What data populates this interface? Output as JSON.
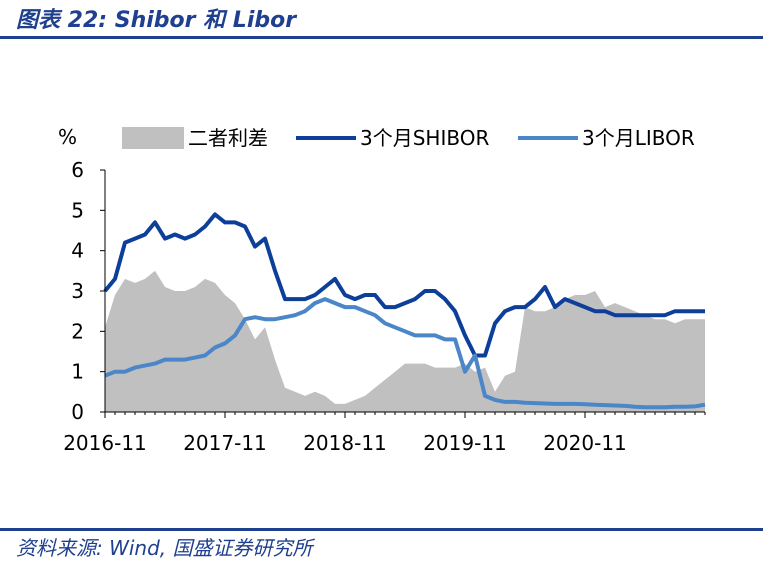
{
  "title": "图表 22:  Shibor 和 Libor",
  "source": "资料来源: Wind, 国盛证券研究所",
  "colors": {
    "brand": "#1f3f8f",
    "spread": "#c0c0c0",
    "shibor": "#0d3f9a",
    "libor": "#4a86c8"
  },
  "chart_data": {
    "type": "line",
    "ylabel": "%",
    "ylim": [
      0,
      6
    ],
    "yticks": [
      "0",
      "1",
      "2",
      "3",
      "4",
      "5",
      "6"
    ],
    "xlabels": [
      "2016-11",
      "2017-11",
      "2018-11",
      "2019-11",
      "2020-11"
    ],
    "legend_position": "top",
    "grid": false,
    "x": [
      "2016-11",
      "2016-12",
      "2017-01",
      "2017-02",
      "2017-03",
      "2017-04",
      "2017-05",
      "2017-06",
      "2017-07",
      "2017-08",
      "2017-09",
      "2017-10",
      "2017-11",
      "2017-12",
      "2018-01",
      "2018-02",
      "2018-03",
      "2018-04",
      "2018-05",
      "2018-06",
      "2018-07",
      "2018-08",
      "2018-09",
      "2018-10",
      "2018-11",
      "2018-12",
      "2019-01",
      "2019-02",
      "2019-03",
      "2019-04",
      "2019-05",
      "2019-06",
      "2019-07",
      "2019-08",
      "2019-09",
      "2019-10",
      "2019-11",
      "2019-12",
      "2020-01",
      "2020-02",
      "2020-03",
      "2020-04",
      "2020-05",
      "2020-06",
      "2020-07",
      "2020-08",
      "2020-09",
      "2020-10",
      "2020-11",
      "2020-12",
      "2021-01",
      "2021-02",
      "2021-03",
      "2021-04",
      "2021-05",
      "2021-06",
      "2021-07",
      "2021-08",
      "2021-09",
      "2021-10",
      "2021-11"
    ],
    "series": [
      {
        "name": "二者利差",
        "kind": "area",
        "values": [
          2.1,
          2.9,
          3.3,
          3.2,
          3.3,
          3.5,
          3.1,
          3.0,
          3.0,
          3.1,
          3.3,
          3.2,
          2.9,
          2.7,
          2.3,
          1.8,
          2.1,
          1.3,
          0.6,
          0.5,
          0.4,
          0.5,
          0.4,
          0.2,
          0.2,
          0.3,
          0.4,
          0.6,
          0.8,
          1.0,
          1.2,
          1.2,
          1.2,
          1.1,
          1.1,
          1.1,
          1.2,
          1.0,
          1.1,
          0.5,
          0.9,
          1.0,
          2.6,
          2.5,
          2.5,
          2.6,
          2.8,
          2.9,
          2.9,
          3.0,
          2.6,
          2.7,
          2.6,
          2.5,
          2.4,
          2.3,
          2.3,
          2.2,
          2.3,
          2.3,
          2.3
        ]
      },
      {
        "name": "3个月SHIBOR",
        "kind": "line",
        "values": [
          3.0,
          3.3,
          4.2,
          4.3,
          4.4,
          4.7,
          4.3,
          4.4,
          4.3,
          4.4,
          4.6,
          4.9,
          4.7,
          4.7,
          4.6,
          4.1,
          4.3,
          3.5,
          2.8,
          2.8,
          2.8,
          2.9,
          3.1,
          3.3,
          2.9,
          2.8,
          2.9,
          2.9,
          2.6,
          2.6,
          2.7,
          2.8,
          3.0,
          3.0,
          2.8,
          2.5,
          1.9,
          1.4,
          1.4,
          2.2,
          2.5,
          2.6,
          2.6,
          2.8,
          3.1,
          2.6,
          2.8,
          2.7,
          2.6,
          2.5,
          2.5,
          2.4,
          2.4,
          2.4,
          2.4,
          2.4,
          2.4,
          2.5,
          2.5,
          2.5,
          2.5
        ]
      },
      {
        "name": "3个月LIBOR",
        "kind": "line",
        "values": [
          0.9,
          1.0,
          1.0,
          1.1,
          1.15,
          1.2,
          1.3,
          1.3,
          1.3,
          1.35,
          1.4,
          1.6,
          1.7,
          1.9,
          2.3,
          2.35,
          2.3,
          2.3,
          2.35,
          2.4,
          2.5,
          2.7,
          2.8,
          2.7,
          2.6,
          2.6,
          2.5,
          2.4,
          2.2,
          2.1,
          2.0,
          1.9,
          1.9,
          1.9,
          1.8,
          1.8,
          1.0,
          1.4,
          0.4,
          0.3,
          0.25,
          0.25,
          0.23,
          0.22,
          0.21,
          0.2,
          0.2,
          0.2,
          0.19,
          0.18,
          0.17,
          0.16,
          0.15,
          0.13,
          0.12,
          0.12,
          0.12,
          0.13,
          0.13,
          0.14,
          0.18
        ]
      }
    ]
  }
}
